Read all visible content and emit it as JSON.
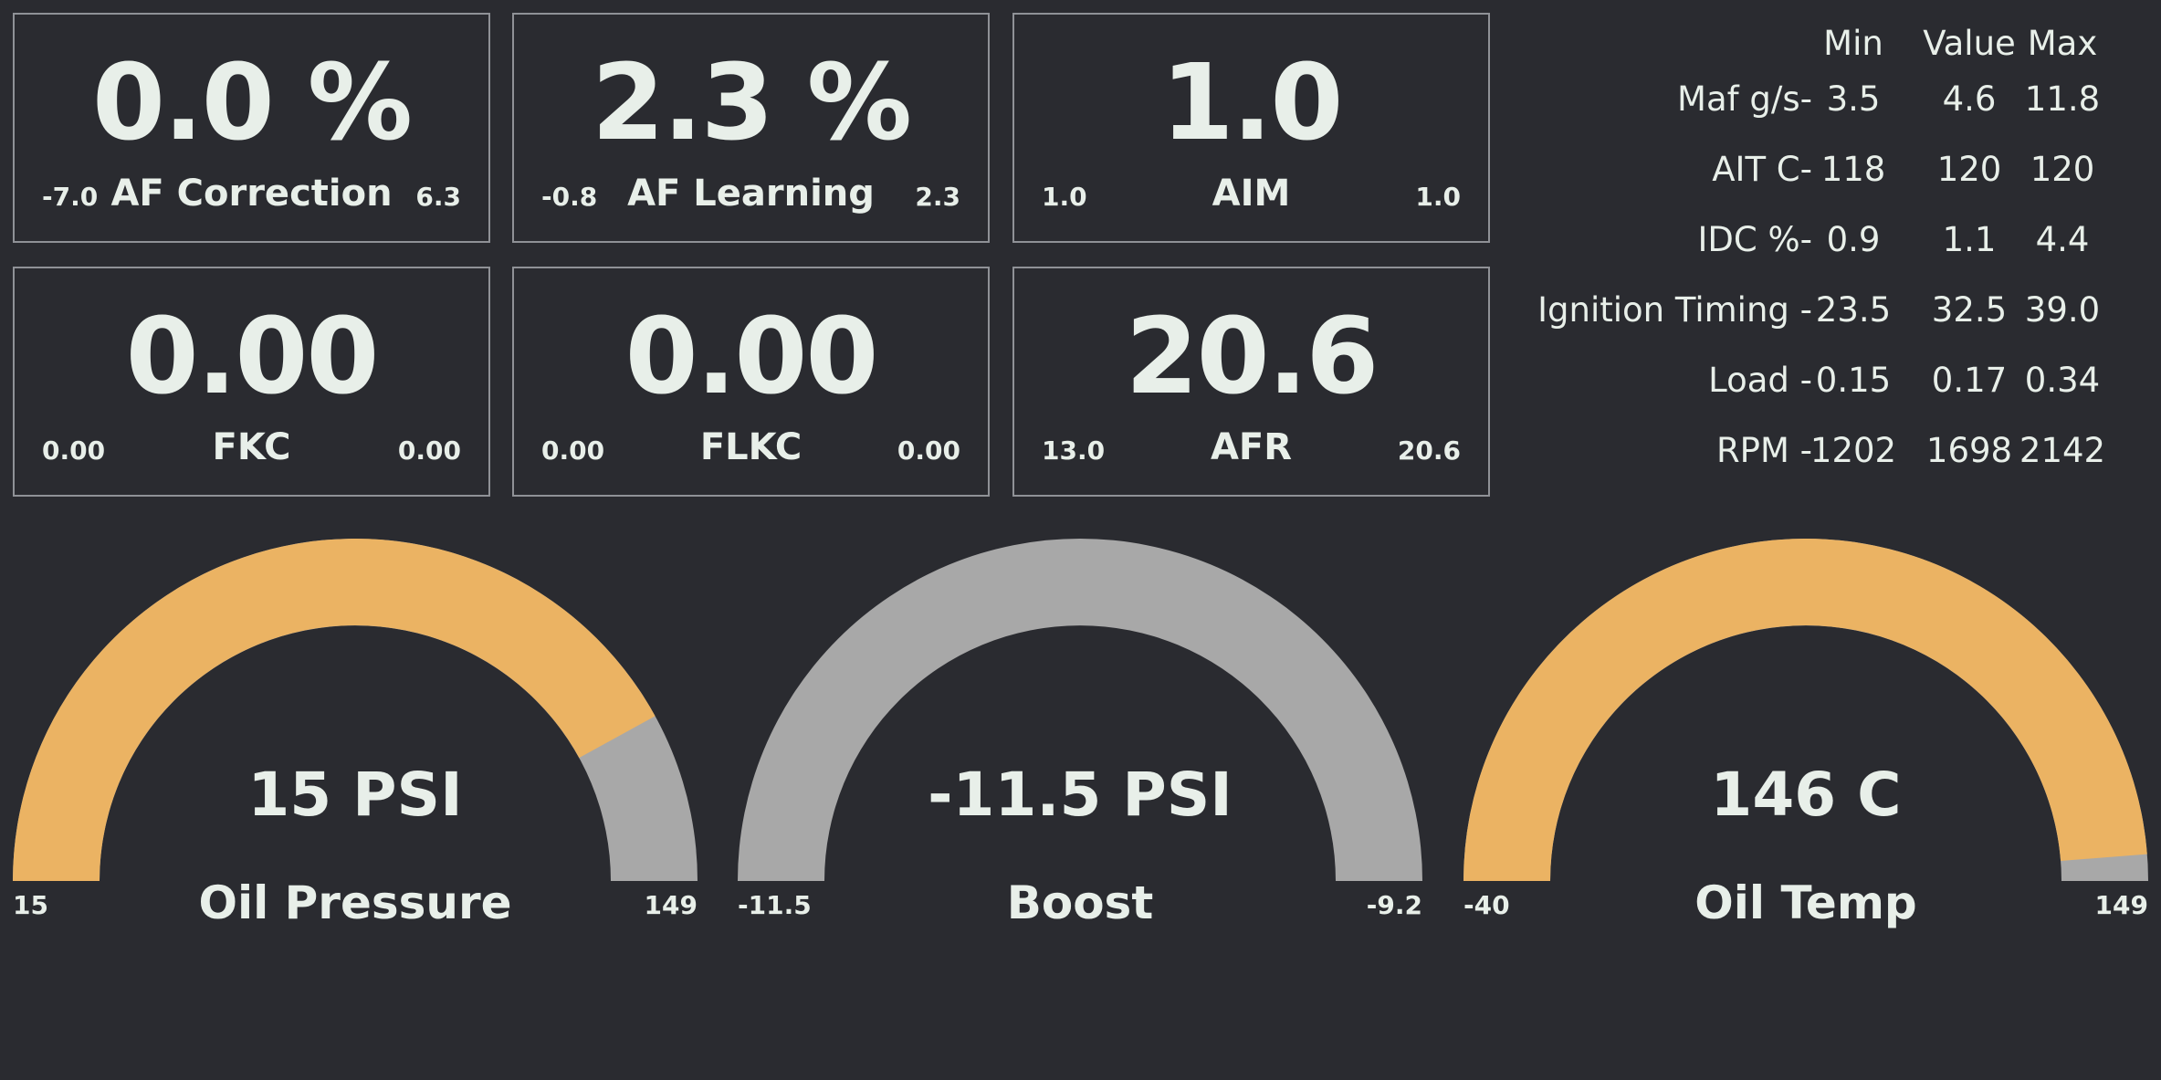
{
  "tiles": [
    {
      "value": "0.0 %",
      "label": "AF Correction",
      "min": "-7.0",
      "max": "6.3"
    },
    {
      "value": "2.3 %",
      "label": "AF Learning",
      "min": "-0.8",
      "max": "2.3"
    },
    {
      "value": "1.0",
      "label": "AIM",
      "min": "1.0",
      "max": "1.0"
    },
    {
      "value": "0.00",
      "label": "FKC",
      "min": "0.00",
      "max": "0.00"
    },
    {
      "value": "0.00",
      "label": "FLKC",
      "min": "0.00",
      "max": "0.00"
    },
    {
      "value": "20.6",
      "label": "AFR",
      "min": "13.0",
      "max": "20.6"
    }
  ],
  "stats": {
    "headers": {
      "min": "Min",
      "value": "Value",
      "max": "Max"
    },
    "rows": [
      {
        "label": "Maf g/s-",
        "min": "3.5",
        "value": "4.6",
        "max": "11.8"
      },
      {
        "label": "AIT C-",
        "min": "118",
        "value": "120",
        "max": "120"
      },
      {
        "label": "IDC %-",
        "min": "0.9",
        "value": "1.1",
        "max": "4.4"
      },
      {
        "label": "Ignition Timing -",
        "min": "23.5",
        "value": "32.5",
        "max": "39.0"
      },
      {
        "label": "Load -",
        "min": "0.15",
        "value": "0.17",
        "max": "0.34"
      },
      {
        "label": "RPM -",
        "min": "1202",
        "value": "1698",
        "max": "2142"
      }
    ]
  },
  "gauges": [
    {
      "value": "15 PSI",
      "label": "Oil Pressure",
      "min": "15",
      "max": "149",
      "fill_fraction": 0.84
    },
    {
      "value": "-11.5 PSI",
      "label": "Boost",
      "min": "-11.5",
      "max": "-9.2",
      "fill_fraction": 0.0
    },
    {
      "value": "146 C",
      "label": "Oil Temp",
      "min": "-40",
      "max": "149",
      "fill_fraction": 0.975
    }
  ],
  "colors": {
    "background": "#2a2b30",
    "text": "#e8efe9",
    "tile_border": "#8f9196",
    "gauge_fill": "#ebb363",
    "gauge_track": "#a8a8a8"
  }
}
